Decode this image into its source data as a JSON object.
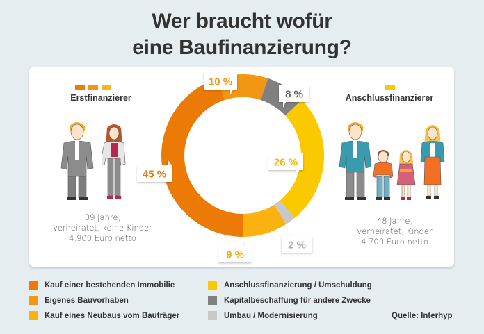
{
  "title_line1": "Wer braucht wofür",
  "title_line2": "eine Baufinanzierung?",
  "groups": {
    "left": {
      "label": "Erstfinanzierer",
      "swatches": [
        "#ec7a07",
        "#f39614",
        "#fbb80f"
      ],
      "desc_line1": "39 Jahre,",
      "desc_line2": "verheiratet, keine Kinder",
      "desc_line3": "4.900 Euro netto",
      "people": [
        "man-in-suit",
        "woman"
      ]
    },
    "right": {
      "label": "Anschlussfinanzierer",
      "swatches": [
        "#fcc800"
      ],
      "desc_line1": "48 Jahre,",
      "desc_line2": "verheiratet, Kinder",
      "desc_line3": "4.700 Euro netto",
      "people": [
        "man",
        "boy",
        "girl",
        "woman"
      ]
    }
  },
  "chart_data": {
    "type": "pie",
    "variant": "donut",
    "title": "Wer braucht wofür eine Baufinanzierung?",
    "start": "bottom",
    "direction": "clockwise",
    "slices": [
      {
        "label": "Kauf einer bestehenden Immobilie",
        "value": 45,
        "display": "45 %",
        "color": "#ec7a07",
        "text_color": "#ec7a07"
      },
      {
        "label": "Eigenes Bauvorhaben",
        "value": 10,
        "display": "10 %",
        "color": "#f39614",
        "text_color": "#f39614"
      },
      {
        "label": "Kapitalbeschaffung für andere Zwecke",
        "value": 8,
        "display": "8 %",
        "color": "#808080",
        "text_color": "#666666"
      },
      {
        "label": "Anschlussfinanzierung / Umschuldung",
        "value": 26,
        "display": "26 %",
        "color": "#fcc800",
        "text_color": "#f5b900"
      },
      {
        "label": "Umbau / Modernisierung",
        "value": 2,
        "display": "2 %",
        "color": "#c8c8c8",
        "text_color": "#b0b0b0"
      },
      {
        "label": "Kauf eines Neubaus vom Bauträger",
        "value": 9,
        "display": "9 %",
        "color": "#fbb10f",
        "text_color": "#f5b000"
      }
    ],
    "legend": [
      {
        "label": "Kauf einer bestehenden Immobilie",
        "color": "#ec7a07"
      },
      {
        "label": "Eigenes Bauvorhaben",
        "color": "#f39614"
      },
      {
        "label": "Kauf eines Neubaus vom Bauträger",
        "color": "#fbb10f"
      },
      {
        "label": "Anschlussfinanzierung / Umschuldung",
        "color": "#fcc800"
      },
      {
        "label": "Kapitalbeschaffung für andere Zwecke",
        "color": "#808080"
      },
      {
        "label": "Umbau / Modernisierung",
        "color": "#c8c8c8"
      }
    ],
    "legend_position": "bottom"
  },
  "source": "Quelle: Interhyp"
}
